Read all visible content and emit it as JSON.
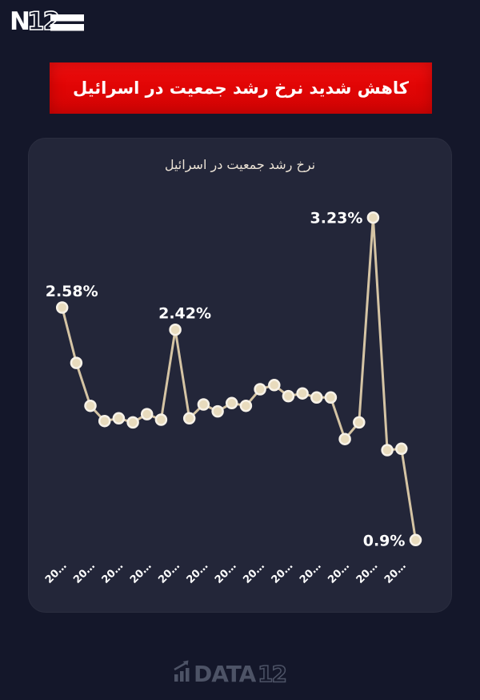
{
  "header": {
    "logo": {
      "n": "N",
      "digits": "12"
    }
  },
  "banner": {
    "text": "کاهش شدید نرخ رشد جمعیت در اسرائیل",
    "background": "#e10505",
    "text_color": "#ffffff"
  },
  "chart_data": {
    "type": "line",
    "title": "نرخ رشد جمعیت در اسرائیل",
    "values": [
      2.58,
      2.18,
      1.87,
      1.76,
      1.78,
      1.75,
      1.81,
      1.77,
      2.42,
      1.78,
      1.88,
      1.83,
      1.89,
      1.87,
      1.99,
      2.02,
      1.94,
      1.96,
      1.93,
      1.93,
      1.63,
      1.75,
      3.23,
      1.55,
      1.56,
      0.9
    ],
    "x_tick_labels": [
      "20…",
      "20…",
      "20…",
      "20…",
      "20…",
      "20…",
      "20…",
      "20…",
      "20…",
      "20…",
      "20…",
      "20…",
      "20…"
    ],
    "tick_every": 2,
    "ylim": [
      0.6,
      3.4
    ],
    "grid": false,
    "legend": false,
    "xlabel": "",
    "ylabel": "",
    "annotations": [
      {
        "index": 0,
        "label": "2.58%",
        "placement": "above"
      },
      {
        "index": 8,
        "label": "2.42%",
        "placement": "above"
      },
      {
        "index": 22,
        "label": "3.23%",
        "placement": "left"
      },
      {
        "index": 25,
        "label": "0.9%",
        "placement": "left"
      }
    ],
    "line_color": "#d5c4a4",
    "marker_fill": "#e8dbbd",
    "marker_stroke": "#f7f2e8",
    "label_color": "#ffffff",
    "background": "#232639"
  },
  "footer": {
    "text": "DATA",
    "digits": "12",
    "color": "#4d5366"
  }
}
